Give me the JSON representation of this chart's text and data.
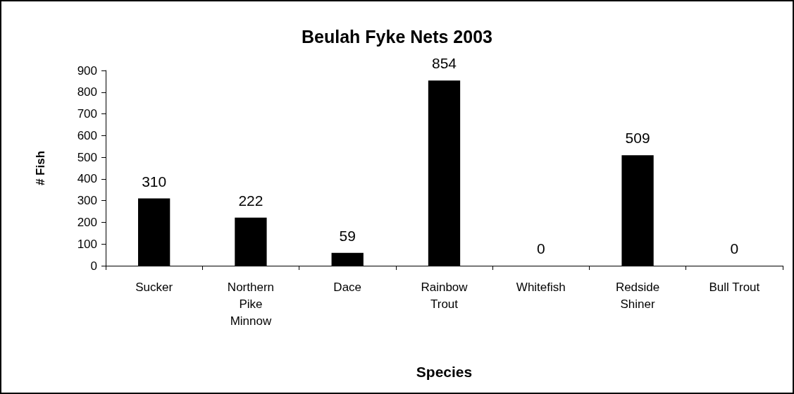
{
  "chart_data": {
    "type": "bar",
    "title": "Beulah Fyke Nets 2003",
    "xlabel": "Species",
    "ylabel": "# Fish",
    "categories": [
      "Sucker",
      "Northern\nPike\nMinnow",
      "Dace",
      "Rainbow\nTrout",
      "Whitefish",
      "Redside\nShiner",
      "Bull Trout"
    ],
    "values": [
      310,
      222,
      59,
      854,
      0,
      509,
      0
    ],
    "color": "#000000",
    "ylim": [
      0,
      900
    ],
    "yticks": [
      0,
      100,
      200,
      300,
      400,
      500,
      600,
      700,
      800,
      900
    ],
    "grid": false,
    "data_labels": true
  }
}
